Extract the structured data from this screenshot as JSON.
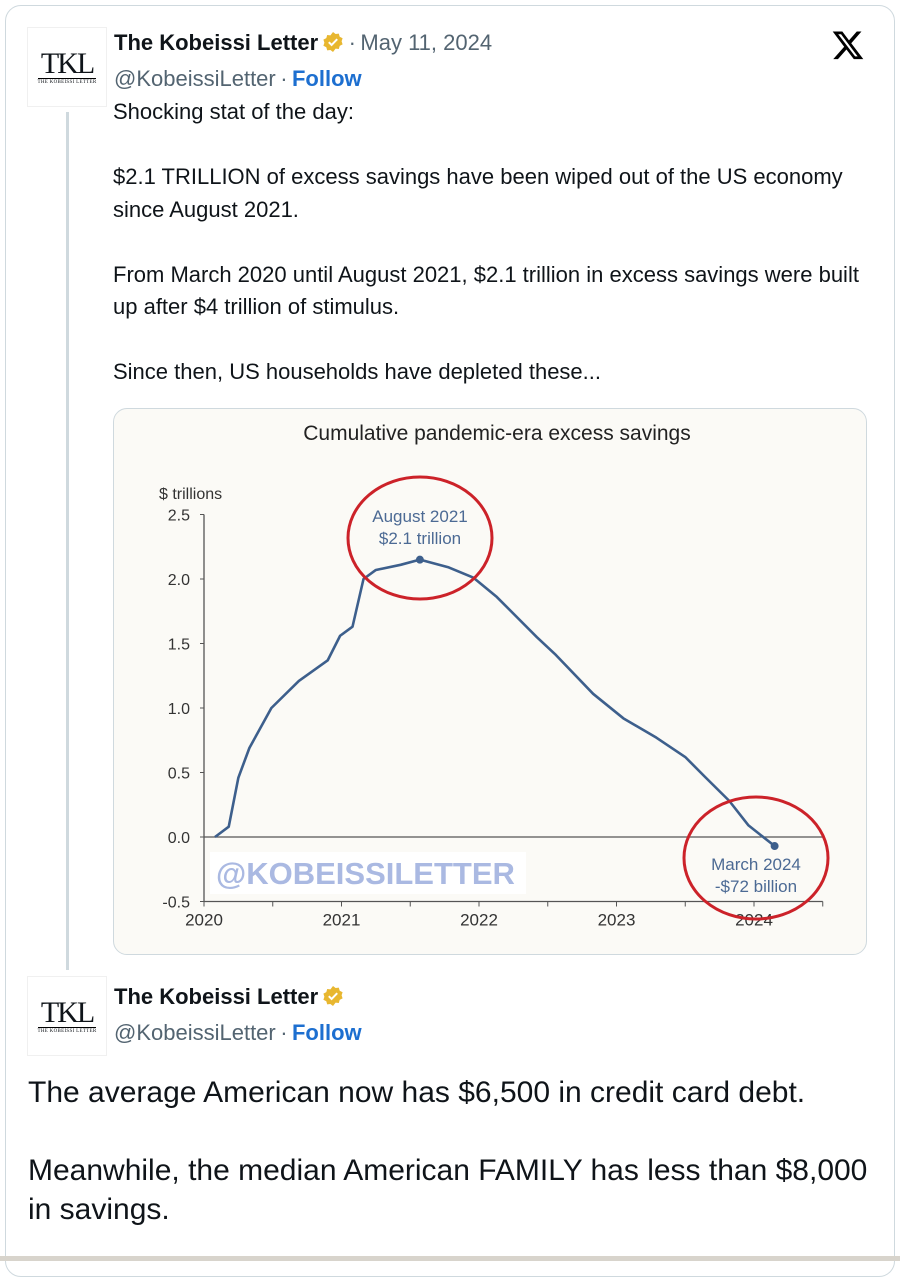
{
  "tweet": {
    "author": "The Kobeissi Letter",
    "handle": "@KobeissiLetter",
    "separator": "·",
    "follow_label": "Follow",
    "date": "May 11, 2024",
    "avatar_text": {
      "big": "TKL",
      "small": "THE KOBEISSI LETTER"
    },
    "text": "Shocking stat of the day:\n\n$2.1 TRILLION of excess savings have been wiped out of the US economy since August 2021.\n\nFrom March 2020 until August 2021, $2.1 trillion in excess savings were built up after $4 trillion of stimulus.\n\nSince then, US households have depleted these...",
    "platform_icon": "x-logo-icon",
    "verified_color": "#e8b730"
  },
  "reply": {
    "author": "The Kobeissi Letter",
    "handle": "@KobeissiLetter",
    "separator": "·",
    "follow_label": "Follow",
    "text": "The average American now has $6,500 in credit card debt.\n\nMeanwhile, the median American FAMILY has less than $8,000 in savings."
  },
  "chart_data": {
    "type": "line",
    "title": "Cumulative pandemic-era excess savings",
    "ylabel": "$ trillions",
    "xlabel": "",
    "xlim": [
      2020,
      2024.5
    ],
    "ylim": [
      -0.5,
      2.5
    ],
    "x_ticks": [
      "2020",
      "2021",
      "2022",
      "2023",
      "2024"
    ],
    "y_ticks": [
      "2.5",
      "2.0",
      "1.5",
      "1.0",
      "0.5",
      "0.0",
      "-0.5"
    ],
    "grid": false,
    "line_color": "#3d5f8c",
    "annotation_color": "#cc2229",
    "series": [
      {
        "x": [
          2020.08,
          2020.18,
          2020.25,
          2020.33,
          2020.49,
          2020.69,
          2020.9,
          2020.99,
          2021.08,
          2021.16,
          2021.25,
          2021.43,
          2021.57,
          2021.78,
          2021.96,
          2022.13,
          2022.42,
          2022.56,
          2022.83,
          2023.05,
          2023.29,
          2023.5,
          2023.64,
          2023.82,
          2023.96,
          2024.15
        ],
        "y": [
          0,
          0.08,
          0.46,
          0.69,
          1.0,
          1.21,
          1.37,
          1.56,
          1.63,
          2.0,
          2.07,
          2.11,
          2.15,
          2.09,
          2.01,
          1.86,
          1.55,
          1.41,
          1.11,
          0.92,
          0.77,
          0.62,
          0.47,
          0.28,
          0.09,
          -0.07
        ]
      }
    ],
    "annotations": [
      {
        "x": 2021.57,
        "y": 2.15,
        "lines": [
          "August 2021",
          "$2.1 trillion"
        ]
      },
      {
        "x": 2024.15,
        "y": -0.07,
        "lines": [
          "March 2024",
          "-$72 billion"
        ]
      }
    ],
    "watermark": "@KOBEISSILETTER"
  }
}
